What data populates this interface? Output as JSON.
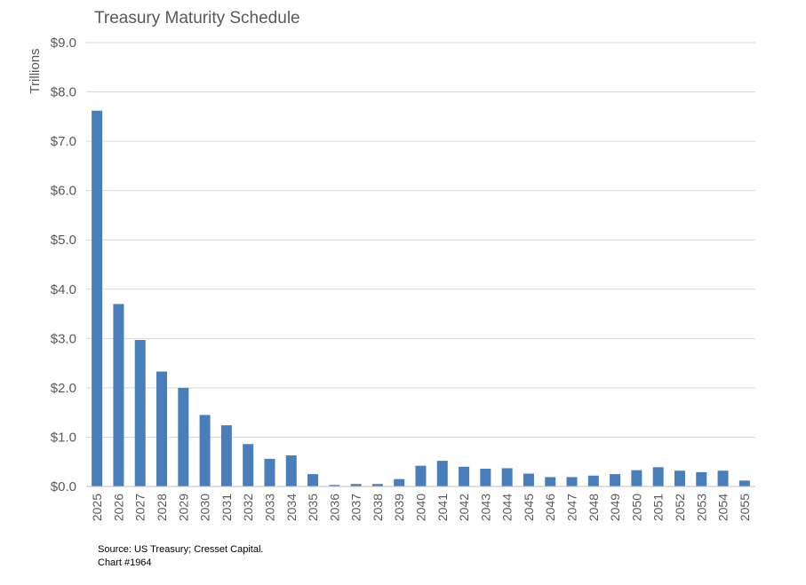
{
  "chart_data": {
    "type": "bar",
    "title": "Treasury Maturity Schedule",
    "ylabel": "Trillions",
    "xlabel": "",
    "ylim": [
      0,
      9
    ],
    "yticks": [
      "$0.0",
      "$1.0",
      "$2.0",
      "$3.0",
      "$4.0",
      "$5.0",
      "$6.0",
      "$7.0",
      "$8.0",
      "$9.0"
    ],
    "grid": true,
    "legend": "none",
    "bar_color": "#4a7ebb",
    "categories": [
      "2025",
      "2026",
      "2027",
      "2028",
      "2029",
      "2030",
      "2031",
      "2032",
      "2033",
      "2034",
      "2035",
      "2036",
      "2037",
      "2038",
      "2039",
      "2040",
      "2041",
      "2042",
      "2043",
      "2044",
      "2045",
      "2046",
      "2047",
      "2048",
      "2049",
      "2050",
      "2051",
      "2052",
      "2053",
      "2054",
      "2055"
    ],
    "values": [
      7.62,
      3.7,
      2.97,
      2.33,
      2.0,
      1.45,
      1.24,
      0.86,
      0.56,
      0.63,
      0.25,
      0.03,
      0.05,
      0.05,
      0.15,
      0.42,
      0.52,
      0.4,
      0.36,
      0.37,
      0.26,
      0.19,
      0.19,
      0.22,
      0.25,
      0.33,
      0.39,
      0.32,
      0.29,
      0.32,
      0.12
    ]
  },
  "footer": {
    "source": "Source: US Treasury; Cresset Capital.",
    "chart_number": "Chart #1964"
  }
}
